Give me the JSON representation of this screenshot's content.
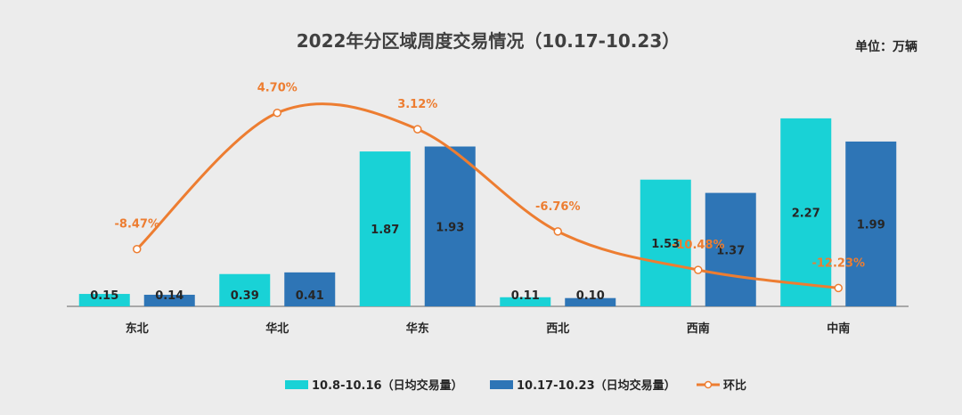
{
  "chart_data": {
    "type": "bar",
    "title": "2022年分区域周度交易情况（10.17-10.23）",
    "unit_label": "单位：万辆",
    "categories": [
      "东北",
      "华北",
      "华东",
      "西北",
      "西南",
      "中南"
    ],
    "series": [
      {
        "name": "10.8-10.16（日均交易量）",
        "type": "bar",
        "color": "#19D2D6",
        "values": [
          0.15,
          0.39,
          1.87,
          0.11,
          1.53,
          2.27
        ],
        "labels": [
          "0.15",
          "0.39",
          "1.87",
          "0.11",
          "1.53",
          "2.27"
        ]
      },
      {
        "name": "10.17-10.23（日均交易量）",
        "type": "bar",
        "color": "#2E75B6",
        "values": [
          0.14,
          0.41,
          1.93,
          0.1,
          1.37,
          1.99
        ],
        "labels": [
          "0.14",
          "0.41",
          "1.93",
          "0.10",
          "1.37",
          "1.99"
        ]
      },
      {
        "name": "环比",
        "type": "line",
        "color": "#ED7D31",
        "secondary_axis": true,
        "values": [
          -8.47,
          4.7,
          3.12,
          -6.76,
          -10.48,
          -12.23
        ],
        "labels": [
          "-8.47%",
          "4.70%",
          "3.12%",
          "-6.76%",
          "-10.48%",
          "-12.23%"
        ]
      }
    ],
    "ylim": [
      0,
      2.4
    ],
    "y2lim": [
      -14,
      7
    ],
    "grid": false,
    "legend_position": "bottom"
  }
}
